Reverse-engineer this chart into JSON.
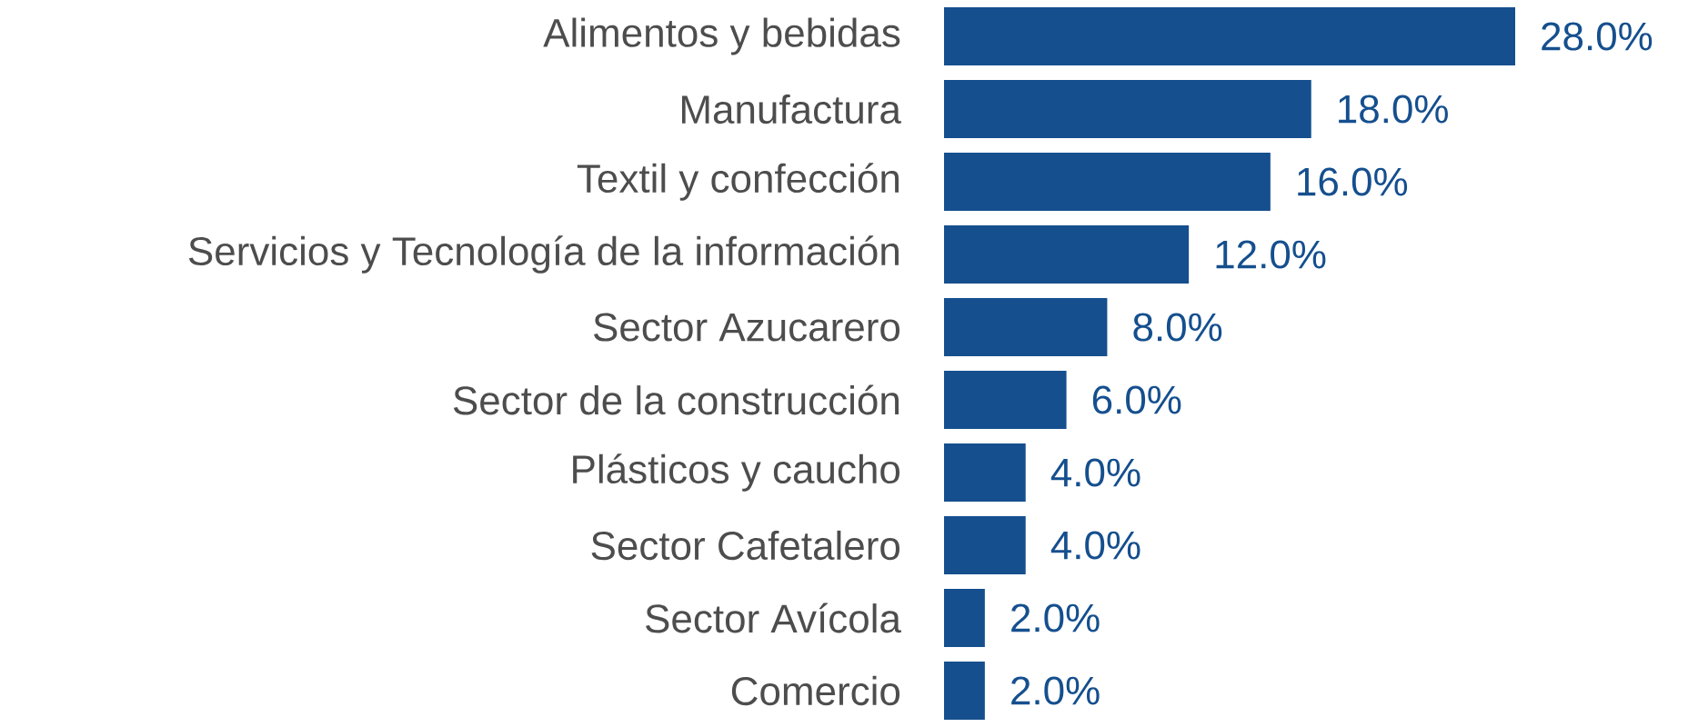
{
  "chart_data": {
    "type": "bar",
    "orientation": "horizontal",
    "color": "#154f8e",
    "categories": [
      "Alimentos y bebidas",
      "Manufactura",
      "Textil y confección",
      "Servicios y Tecnología de la información",
      "Sector Azucarero",
      "Sector de la construcción",
      "Plásticos y caucho",
      "Sector Cafetalero",
      "Sector Avícola",
      "Comercio"
    ],
    "values": [
      28,
      18,
      16,
      12,
      8,
      6,
      4,
      4,
      2,
      2
    ],
    "value_labels": [
      "28.0%",
      "18.0%",
      "16.0%",
      "12.0%",
      "8.0%",
      "6.0%",
      "4.0%",
      "4.0%",
      "2.0%",
      "2.0%"
    ]
  }
}
